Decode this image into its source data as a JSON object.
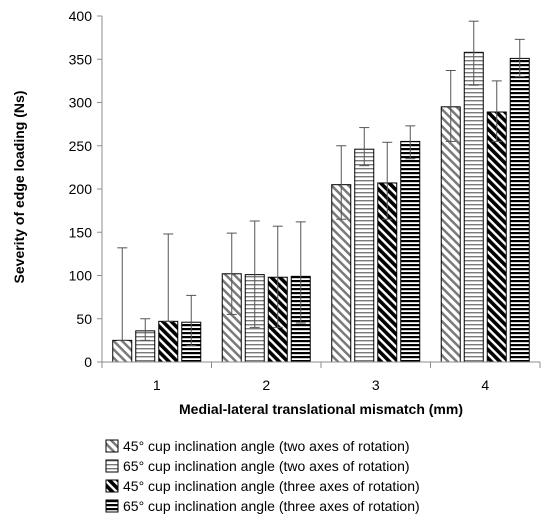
{
  "chart_data": {
    "type": "bar",
    "title": "",
    "xlabel": "Medial-lateral translational mismatch (mm)",
    "ylabel": "Severity of edge loading (Ns)",
    "categories": [
      "1",
      "2",
      "3",
      "4"
    ],
    "ylim": [
      0,
      400
    ],
    "yticks": [
      0,
      50,
      100,
      150,
      200,
      250,
      300,
      350,
      400
    ],
    "grid": false,
    "legend_position": "bottom",
    "series": [
      {
        "name": "45° cup inclination angle (two axes of rotation)",
        "pattern": "diagonal-hatch",
        "values": [
          25,
          102,
          205,
          295
        ],
        "error_low": [
          25,
          55,
          165,
          255
        ],
        "error_high": [
          132,
          149,
          250,
          337
        ]
      },
      {
        "name": "65° cup inclination angle (two axes of rotation)",
        "pattern": "horizontal-lines",
        "values": [
          36,
          101,
          246,
          358
        ],
        "error_low": [
          25,
          40,
          227,
          320
        ],
        "error_high": [
          50,
          163,
          271,
          394
        ]
      },
      {
        "name": "45° cup inclination angle (three axes of rotation)",
        "pattern": "bold-diagonal",
        "values": [
          47,
          98,
          207,
          289
        ],
        "error_low": [
          47,
          40,
          165,
          255
        ],
        "error_high": [
          148,
          157,
          254,
          325
        ]
      },
      {
        "name": "65° cup inclination angle (three axes of rotation)",
        "pattern": "bold-horizontal",
        "values": [
          46,
          99,
          255,
          351
        ],
        "error_low": [
          19,
          45,
          235,
          330
        ],
        "error_high": [
          77,
          162,
          273,
          373
        ]
      }
    ]
  }
}
